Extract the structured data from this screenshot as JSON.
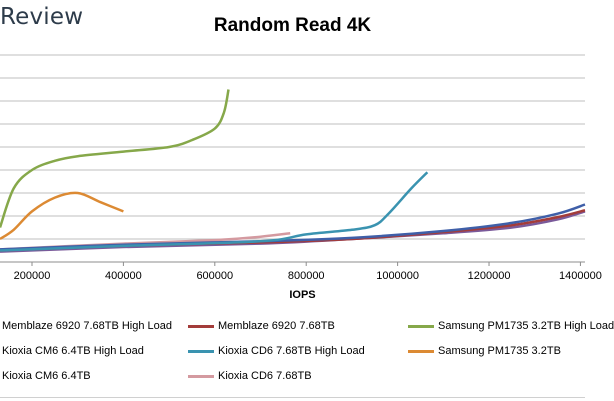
{
  "brand": "Review",
  "chart_data": {
    "type": "line",
    "title": "Random Read 4K",
    "xlabel": "IOPS",
    "ylabel": "",
    "x_ticks": [
      200000,
      400000,
      600000,
      800000,
      1000000,
      1200000,
      1400000
    ],
    "x_tick_labels": [
      "200000",
      "400000",
      "600000",
      "800000",
      "1000000",
      "1200000",
      "1400000"
    ],
    "xlim": [
      130000,
      1410000
    ],
    "ylim": [
      0,
      9
    ],
    "grid": true,
    "legend_position": "bottom",
    "series": [
      {
        "name": "Memblaze 6920 7.68TB High Load",
        "color": "#3f5fa8",
        "x": [
          130000,
          400000,
          700000,
          900000,
          1100000,
          1250000,
          1350000,
          1410000
        ],
        "y": [
          0.55,
          0.75,
          0.9,
          1.05,
          1.35,
          1.7,
          2.1,
          2.5
        ]
      },
      {
        "name": "Memblaze 6920 7.68TB",
        "color": "#a33c3a",
        "x": [
          130000,
          400000,
          700000,
          900000,
          1100000,
          1250000,
          1350000,
          1410000
        ],
        "y": [
          0.5,
          0.7,
          0.85,
          1.0,
          1.3,
          1.6,
          1.95,
          2.25
        ]
      },
      {
        "name": "Samsung PM1735 3.2TB High Load",
        "color": "#86a84a",
        "x": [
          130000,
          160000,
          200000,
          250000,
          300000,
          400000,
          500000,
          550000,
          600000,
          620000,
          630000
        ],
        "y": [
          1.5,
          3.2,
          4.0,
          4.4,
          4.6,
          4.8,
          5.0,
          5.3,
          5.8,
          6.5,
          7.5
        ]
      },
      {
        "name": "Kioxia CM6 6.4TB High Load",
        "color": "#7a5a9a",
        "x": [
          130000,
          400000,
          700000,
          900000,
          1100000,
          1250000,
          1350000,
          1410000
        ],
        "y": [
          0.45,
          0.65,
          0.8,
          1.0,
          1.25,
          1.5,
          1.85,
          2.2
        ]
      },
      {
        "name": "Kioxia CD6 7.68TB High Load",
        "color": "#3a93b0",
        "x": [
          130000,
          400000,
          700000,
          800000,
          900000,
          950000,
          980000,
          1030000,
          1065000
        ],
        "y": [
          0.5,
          0.7,
          0.9,
          1.2,
          1.4,
          1.6,
          2.1,
          3.2,
          3.9
        ]
      },
      {
        "name": "Samsung PM1735 3.2TB",
        "color": "#dc8a33",
        "x": [
          130000,
          160000,
          200000,
          250000,
          300000,
          350000,
          400000
        ],
        "y": [
          1.0,
          1.4,
          2.2,
          2.8,
          3.0,
          2.6,
          2.2
        ]
      },
      {
        "name": "Kioxia CM6 6.4TB",
        "color": "#9aa6c8",
        "x": [
          130000,
          400000,
          600000,
          760000
        ],
        "y": [
          0.5,
          0.7,
          0.8,
          0.9
        ]
      },
      {
        "name": "Kioxia CD6 7.68TB",
        "color": "#d49aa0",
        "x": [
          130000,
          400000,
          600000,
          700000,
          765000
        ],
        "y": [
          0.55,
          0.8,
          0.95,
          1.1,
          1.25
        ]
      }
    ]
  }
}
